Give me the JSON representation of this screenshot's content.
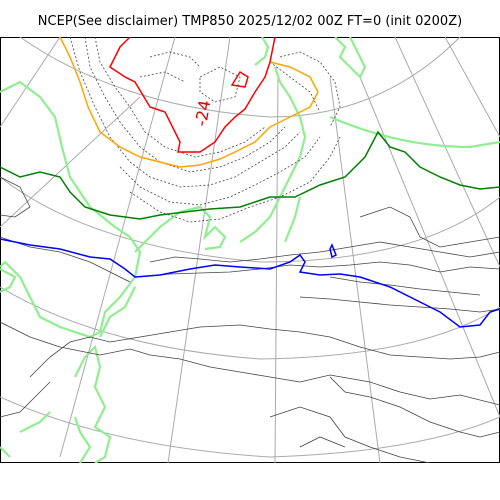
{
  "title": "NCEP(See disclaimer) TMP850 2025/12/02 00Z FT=0 (init 0200Z)",
  "map": {
    "variable": "TMP850",
    "labels": [
      {
        "text": "-24",
        "color": "#e00000"
      }
    ],
    "colors": {
      "graticule": "#aaaaaa",
      "coast": "#90ee90",
      "isotherm_thin": "#444444",
      "isotherm_dotted": "#444444",
      "isotherm_0": "#0000ff",
      "isotherm_minus6": "#008000",
      "isotherm_minus18": "#ffa500",
      "isotherm_minus24": "#ff0000"
    }
  }
}
